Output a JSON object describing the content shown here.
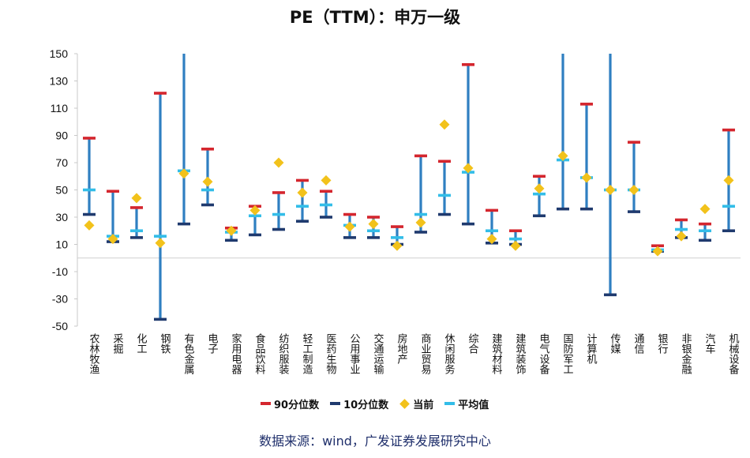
{
  "title": "PE（TTM）：申万一级",
  "source": "数据来源：wind，广发证券发展研究中心",
  "colors": {
    "p90": "#d4262e",
    "p10": "#1f3a6e",
    "current": "#f2c21b",
    "avg": "#33bde8",
    "range": "#2f7fc1"
  },
  "legend": {
    "p90": "90分位数",
    "p10": "10分位数",
    "current": "当前",
    "avg": "平均值"
  },
  "chart_data": {
    "type": "range-dot",
    "title": "PE（TTM）：申万一级",
    "ylim": [
      -50,
      150
    ],
    "yticks": [
      150,
      130,
      110,
      90,
      70,
      50,
      30,
      10,
      -10,
      -30,
      -50
    ],
    "grid": false,
    "legend_position": "bottom",
    "categories": [
      "农林牧渔",
      "采掘",
      "化工",
      "钢铁",
      "有色金属",
      "电子",
      "家用电器",
      "食品饮料",
      "纺织服装",
      "轻工制造",
      "医药生物",
      "公用事业",
      "交通运输",
      "房地产",
      "商业贸易",
      "休闲服务",
      "综合",
      "建筑材料",
      "建筑装饰",
      "电气设备",
      "国防军工",
      "计算机",
      "传媒",
      "通信",
      "银行",
      "非银金融",
      "汽车",
      "机械设备"
    ],
    "series": [
      {
        "name": "90分位数",
        "values": [
          88,
          49,
          37,
          121,
          150,
          80,
          22,
          38,
          48,
          57,
          49,
          32,
          30,
          23,
          75,
          71,
          142,
          35,
          20,
          60,
          150,
          113,
          150,
          85,
          9,
          28,
          25,
          94
        ]
      },
      {
        "name": "10分位数",
        "values": [
          32,
          12,
          15,
          -45,
          25,
          39,
          13,
          17,
          21,
          27,
          30,
          15,
          15,
          10,
          19,
          32,
          25,
          11,
          10,
          31,
          36,
          36,
          -27,
          34,
          5,
          15,
          13,
          20
        ]
      },
      {
        "name": "当前",
        "values": [
          24,
          14,
          44,
          11,
          62,
          56,
          20,
          35,
          70,
          48,
          57,
          23,
          25,
          9,
          26,
          98,
          66,
          14,
          9,
          51,
          75,
          59,
          50,
          50,
          5,
          16,
          36,
          57
        ]
      },
      {
        "name": "平均值",
        "values": [
          50,
          16,
          20,
          16,
          64,
          50,
          19,
          31,
          32,
          38,
          39,
          24,
          20,
          15,
          32,
          46,
          63,
          20,
          14,
          47,
          72,
          59,
          50,
          50,
          6,
          21,
          20,
          38
        ]
      }
    ]
  }
}
